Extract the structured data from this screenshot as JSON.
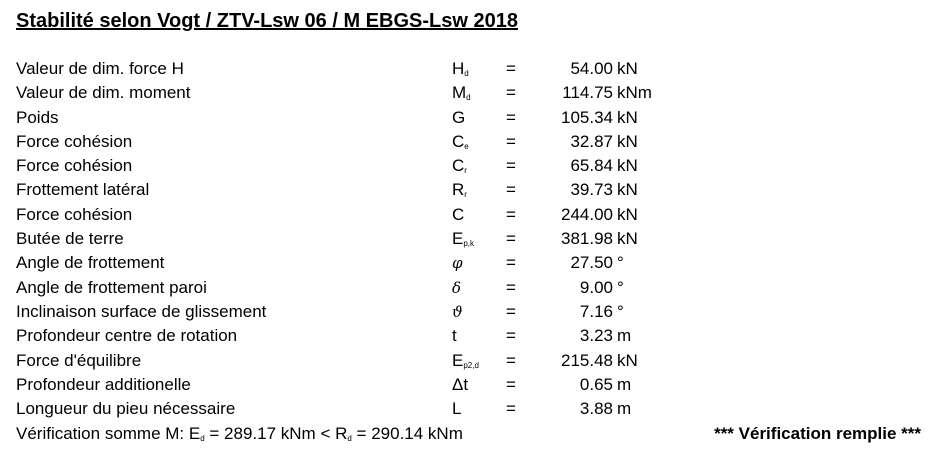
{
  "title": "Stabilité selon Vogt / ZTV-Lsw 06 / M EBGS-Lsw 2018",
  "rows": [
    {
      "label": "Valeur de dim. force H",
      "sym": "H",
      "sub": "d",
      "eq": "=",
      "value": "54.00",
      "unit": "kN"
    },
    {
      "label": "Valeur de dim. moment",
      "sym": "M",
      "sub": "d",
      "eq": "=",
      "value": "114.75",
      "unit": "kNm"
    },
    {
      "label": "Poids",
      "sym": "G",
      "sub": "",
      "eq": "=",
      "value": "105.34",
      "unit": "kN"
    },
    {
      "label": "Force cohésion",
      "sym": "C",
      "sub": "e",
      "eq": "=",
      "value": "32.87",
      "unit": "kN"
    },
    {
      "label": "Force cohésion",
      "sym": "C",
      "sub": "r",
      "eq": "=",
      "value": "65.84",
      "unit": "kN"
    },
    {
      "label": "Frottement latéral",
      "sym": "R",
      "sub": "r",
      "eq": "=",
      "value": "39.73",
      "unit": "kN"
    },
    {
      "label": "Force cohésion",
      "sym": "C",
      "sub": "",
      "eq": "=",
      "value": "244.00",
      "unit": "kN"
    },
    {
      "label": "Butée de terre",
      "sym": "E",
      "sub": "p,k",
      "eq": "=",
      "value": "381.98",
      "unit": "kN"
    },
    {
      "label": "Angle de frottement",
      "sym": "φ",
      "sub": "",
      "eq": "=",
      "value": "27.50",
      "unit": "°"
    },
    {
      "label": "Angle de frottement paroi",
      "sym": "δ",
      "sub": "",
      "eq": "=",
      "value": "9.00",
      "unit": "°"
    },
    {
      "label": "Inclinaison surface de glissement",
      "sym": "ϑ",
      "sub": "",
      "eq": "=",
      "value": "7.16",
      "unit": "°"
    },
    {
      "label": "Profondeur centre de rotation",
      "sym": "t",
      "sub": "",
      "eq": "=",
      "value": "3.23",
      "unit": "m"
    },
    {
      "label": "Force d'équilibre",
      "sym": "E",
      "sub": "p2,d",
      "eq": "=",
      "value": "215.48",
      "unit": "kN"
    },
    {
      "label": "Profondeur additionelle",
      "sym": "Δt",
      "sub": "",
      "eq": "=",
      "value": "0.65",
      "unit": "m"
    },
    {
      "label": "Longueur du pieu nécessaire",
      "sym": "L",
      "sub": "",
      "eq": "=",
      "value": "3.88",
      "unit": "m"
    }
  ],
  "footer": {
    "verif_prefix": "Vérification somme M: E",
    "verif_sub1": "d",
    "verif_mid": " = 289.17 kNm <  R",
    "verif_sub2": "d",
    "verif_end": " = 290.14 kNm",
    "status": "*** Vérification remplie   ***"
  }
}
